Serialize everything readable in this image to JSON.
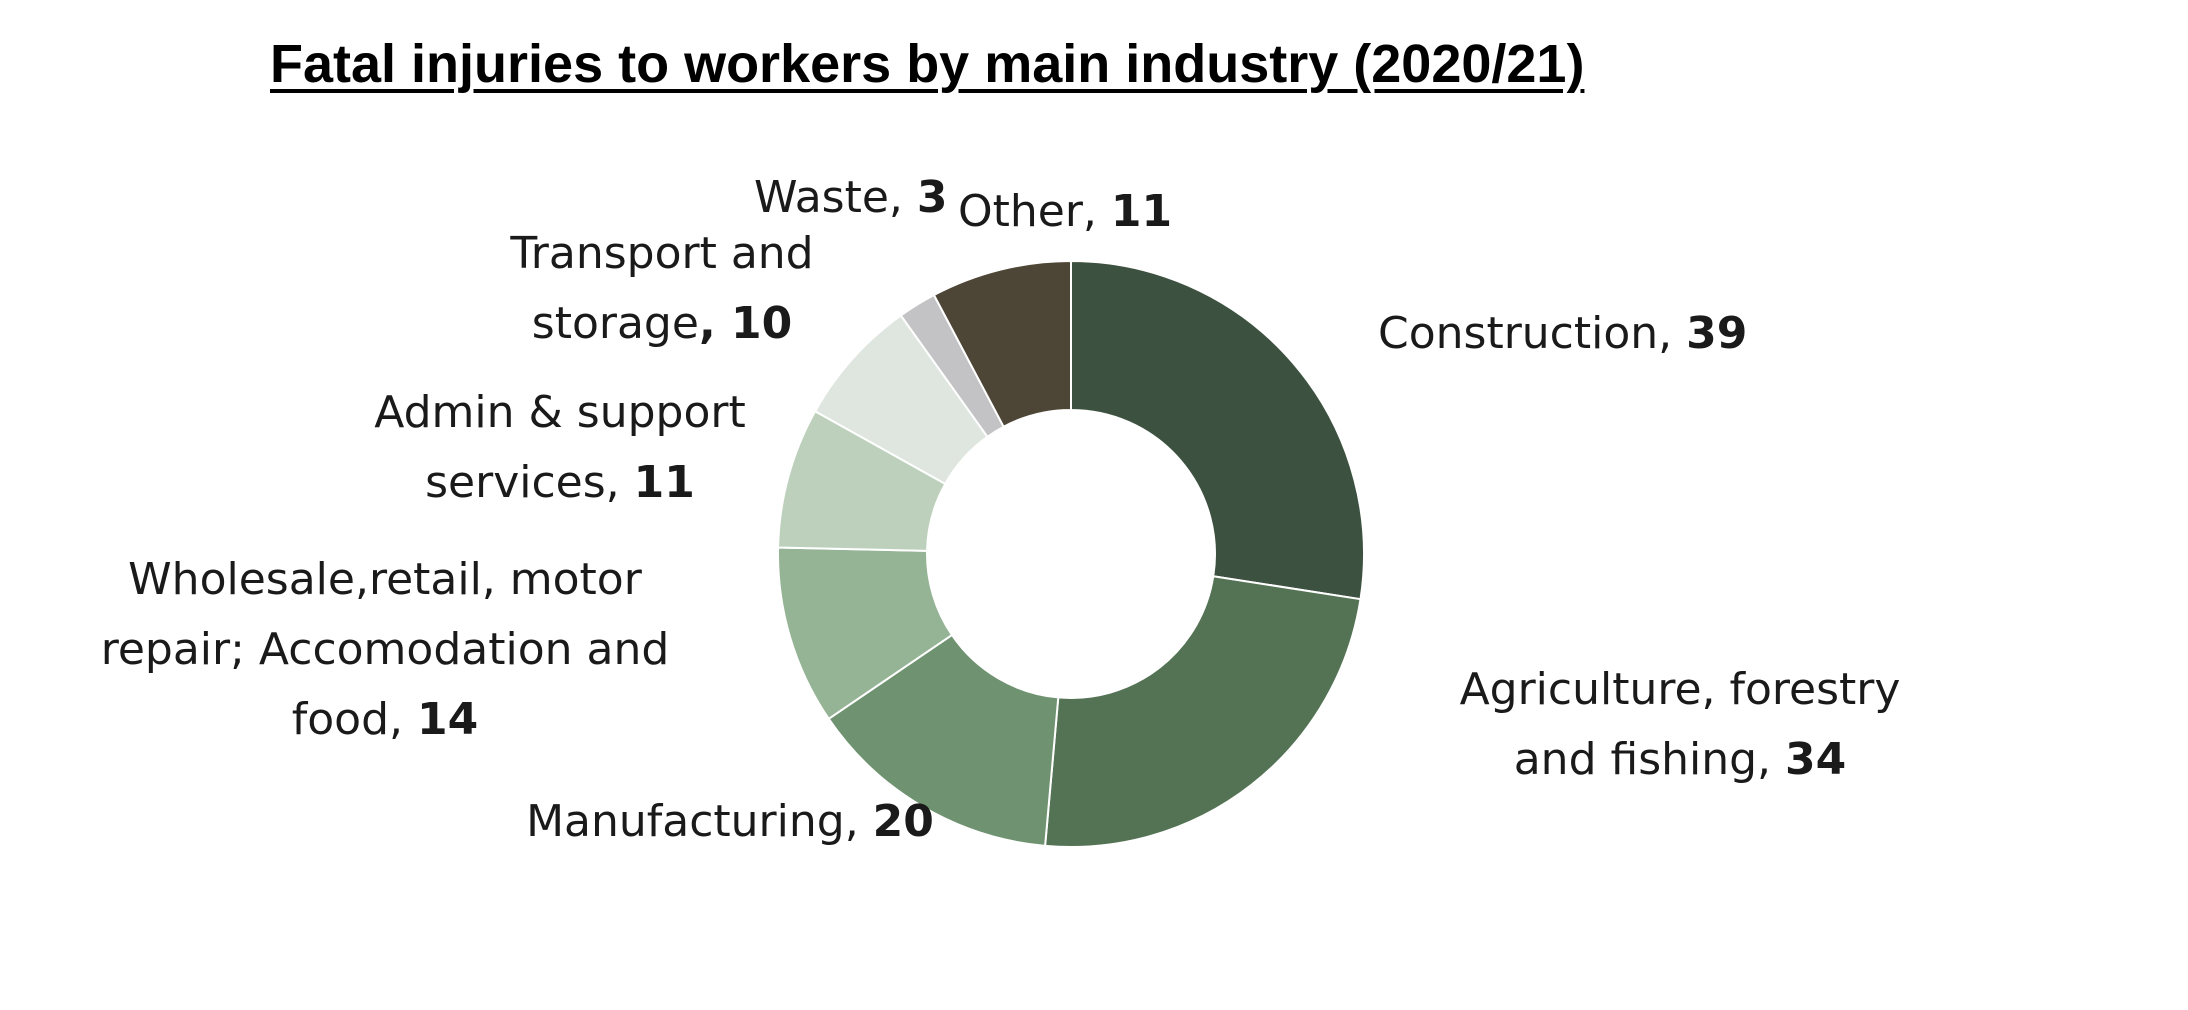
{
  "chart_data": {
    "type": "pie",
    "variant": "donut",
    "title": "Fatal injuries to workers by main industry (2020/21)",
    "slices": [
      {
        "label": "Construction",
        "label_lines": [
          "Construction, "
        ],
        "value_prefix": "",
        "value": 39,
        "color": "#3d5140"
      },
      {
        "label": "Agriculture, forestry and fishing",
        "label_lines": [
          "Agriculture, forestry",
          "and fishing, "
        ],
        "value_prefix": "",
        "value": 34,
        "color": "#547355"
      },
      {
        "label": "Manufacturing",
        "label_lines": [
          "Manufacturing, "
        ],
        "value_prefix": "",
        "value": 20,
        "color": "#6f9370"
      },
      {
        "label": "Wholesale,retail, motor repair; Accomodation and food",
        "label_lines": [
          "Wholesale,retail, motor",
          "repair; Accomodation and",
          "food, "
        ],
        "value_prefix": "",
        "value": 14,
        "color": "#95b395"
      },
      {
        "label": "Admin & support services",
        "label_lines": [
          "Admin & support",
          "services, "
        ],
        "value_prefix": "",
        "value": 11,
        "color": "#bcd0bc"
      },
      {
        "label": "Transport and storage",
        "label_lines": [
          "Transport and",
          "storage"
        ],
        "value_prefix": ", ",
        "value": 10,
        "color": "#dfe6df"
      },
      {
        "label": "Waste",
        "label_lines": [
          "Waste, "
        ],
        "value_prefix": "",
        "value": 3,
        "color": "#c3c3c5"
      },
      {
        "label": "Other",
        "label_lines": [
          "Other, "
        ],
        "value_prefix": "",
        "value": 11,
        "color": "#4d4535"
      }
    ],
    "start_angle_deg": 0,
    "direction": "clockwise",
    "legend": "none"
  }
}
